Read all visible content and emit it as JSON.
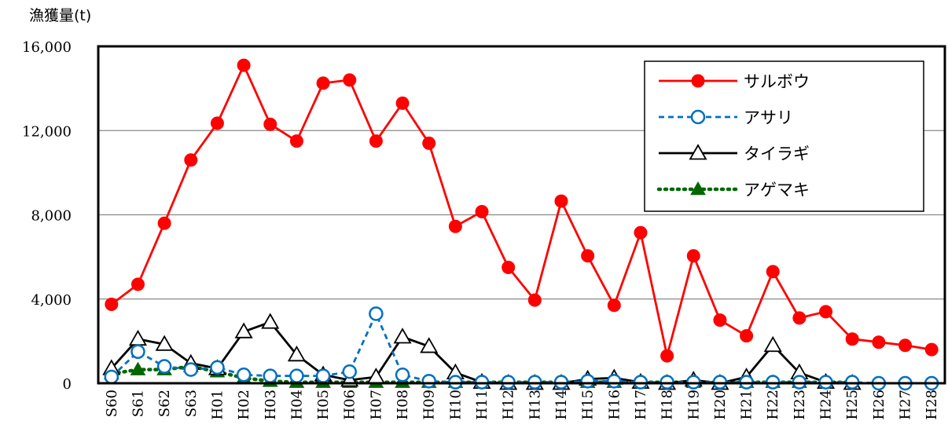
{
  "chart_data": {
    "type": "line",
    "title": "",
    "xlabel": "",
    "ylabel": "漁獲量(t)",
    "ylim": [
      0,
      16000
    ],
    "yticks": [
      0,
      4000,
      8000,
      12000,
      16000
    ],
    "ytick_labels": [
      "0",
      "4,000",
      "8,000",
      "12,000",
      "16,000"
    ],
    "grid": true,
    "legend_position": "top-right",
    "categories": [
      "S60",
      "S61",
      "S62",
      "S63",
      "H01",
      "H02",
      "H03",
      "H04",
      "H05",
      "H06",
      "H07",
      "H08",
      "H09",
      "H10",
      "H11",
      "H12",
      "H13",
      "H14",
      "H15",
      "H16",
      "H17",
      "H18",
      "H19",
      "H20",
      "H21",
      "H22",
      "H23",
      "H24",
      "H25",
      "H26",
      "H27",
      "H28"
    ],
    "series": [
      {
        "name": "サルボウ",
        "color": "#ff0000",
        "line": "solid",
        "marker": "filled-circle",
        "values": [
          3750,
          4700,
          7600,
          10600,
          12350,
          15100,
          12300,
          11500,
          14250,
          14400,
          11500,
          13300,
          11400,
          7450,
          8150,
          5500,
          3950,
          8650,
          6050,
          3700,
          7150,
          1300,
          6050,
          3000,
          2250,
          5300,
          3100,
          3400,
          2100,
          1950,
          1800,
          1600
        ]
      },
      {
        "name": "アサリ",
        "color": "#0070c0",
        "line": "dashed",
        "marker": "open-circle",
        "values": [
          300,
          1500,
          800,
          650,
          750,
          400,
          350,
          350,
          350,
          550,
          3300,
          400,
          100,
          50,
          50,
          50,
          50,
          50,
          100,
          100,
          50,
          50,
          50,
          50,
          50,
          50,
          50,
          50,
          50,
          0,
          0,
          0
        ]
      },
      {
        "name": "タイラギ",
        "color": "#000000",
        "line": "solid",
        "marker": "open-triangle",
        "values": [
          700,
          2100,
          1850,
          950,
          700,
          2450,
          2900,
          1350,
          400,
          150,
          300,
          2200,
          1750,
          500,
          50,
          0,
          0,
          0,
          200,
          250,
          50,
          0,
          150,
          0,
          300,
          1800,
          500,
          50,
          0,
          null,
          null,
          null
        ]
      },
      {
        "name": "アゲマキ",
        "color": "#006600",
        "line": "dotted",
        "marker": "filled-triangle",
        "values": [
          450,
          650,
          650,
          800,
          550,
          250,
          100,
          50,
          50,
          50,
          50,
          50,
          50,
          50,
          50,
          50,
          50,
          50,
          50,
          50,
          50,
          50,
          50,
          50,
          50,
          50,
          50,
          50,
          50,
          null,
          null,
          null
        ]
      }
    ]
  }
}
